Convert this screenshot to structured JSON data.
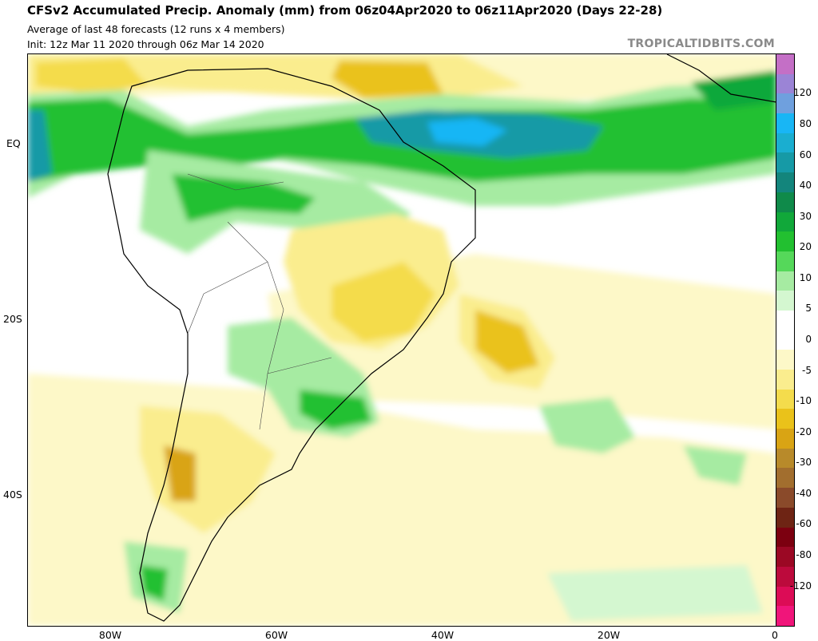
{
  "header": {
    "title": "CFSv2 Accumulated Precip. Anomaly (mm) from 06z04Apr2020 to 06z11Apr2020 (Days 22-28)",
    "subtitle_1": "Average of last 48 forecasts (12 runs x 4 members)",
    "subtitle_2": "Init: 12z Mar 11 2020 through 06z Mar 14 2020",
    "credit": "TROPICALTIDBITS.COM"
  },
  "axes": {
    "lat_labels": [
      "EQ",
      "20S",
      "40S"
    ],
    "lon_labels": [
      "80W",
      "60W",
      "40W",
      "20W",
      "0"
    ]
  },
  "colorbar": {
    "labels": [
      "120",
      "80",
      "60",
      "40",
      "30",
      "20",
      "10",
      "5",
      "0",
      "-5",
      "-10",
      "-20",
      "-30",
      "-40",
      "-60",
      "-80",
      "-120"
    ],
    "colors": [
      "#c46fc6",
      "#9b84d6",
      "#6fa0de",
      "#18b6f5",
      "#1aaed0",
      "#169aa6",
      "#13857c",
      "#0f8a4a",
      "#11a83a",
      "#22c030",
      "#55d85a",
      "#a6eba2",
      "#d4f7d0",
      "#ffffff",
      "#ffffff",
      "#fdf8c8",
      "#faed8e",
      "#f4dc4c",
      "#eac21a",
      "#d9a414",
      "#b88a2a",
      "#a26e2e",
      "#8a4a2a",
      "#6e2414",
      "#7c0010",
      "#9b0824",
      "#bc0a3c",
      "#dc0c56",
      "#f0157a"
    ]
  },
  "map": {
    "region": "South America and tropical Atlantic",
    "colors": {
      "dry_light": "#fdf8c8",
      "dry_medium": "#faed8e",
      "dry_strong": "#f4dc4c",
      "dry_heavy": "#d9a414",
      "wet_light": "#d4f7d0",
      "wet_medium": "#a6eba2",
      "wet_strong": "#22c030",
      "wet_heavy": "#11a83a",
      "wet_teal": "#169aa6",
      "wet_cyan": "#18b6f5",
      "land_border": "#000000"
    }
  }
}
